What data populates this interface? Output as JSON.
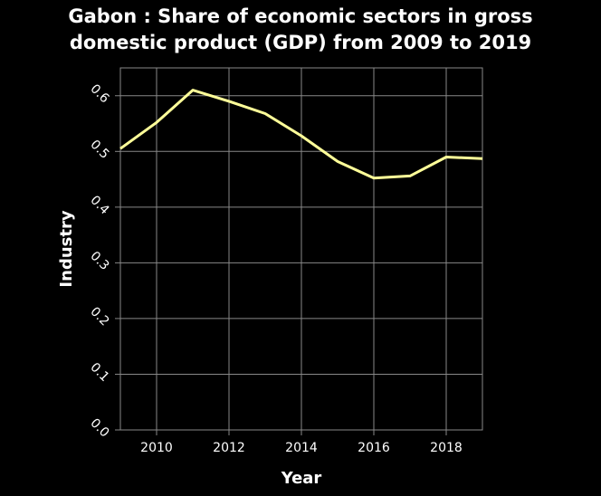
{
  "chart_data": {
    "type": "line",
    "title": [
      "Gabon : Share of economic sectors in gross",
      "domestic product (GDP) from 2009 to 2019"
    ],
    "xlabel": "Year",
    "ylabel": "Industry",
    "xlim": [
      2009,
      2019
    ],
    "ylim": [
      0,
      0.65
    ],
    "x_ticks": [
      2010,
      2012,
      2014,
      2016,
      2018
    ],
    "x_tick_labels": [
      "2010",
      "2012",
      "2014",
      "2016",
      "2018"
    ],
    "y_ticks": [
      0,
      0.1,
      0.2,
      0.3,
      0.4,
      0.5,
      0.6
    ],
    "y_tick_labels": [
      "0.0",
      "0.1",
      "0.2",
      "0.3",
      "0.4",
      "0.5",
      "0.6"
    ],
    "grid": true,
    "series": [
      {
        "x": [
          2009,
          2010,
          2011,
          2012,
          2013,
          2014,
          2015,
          2016,
          2017,
          2018,
          2019
        ],
        "values": [
          0.505,
          0.552,
          0.61,
          0.59,
          0.568,
          0.528,
          0.482,
          0.452,
          0.456,
          0.49,
          0.487
        ],
        "color": "#ffff99"
      }
    ],
    "colors": {
      "background": "#000000",
      "plot_background": "#000000",
      "grid": "#888888",
      "line": "#ffff99"
    }
  }
}
